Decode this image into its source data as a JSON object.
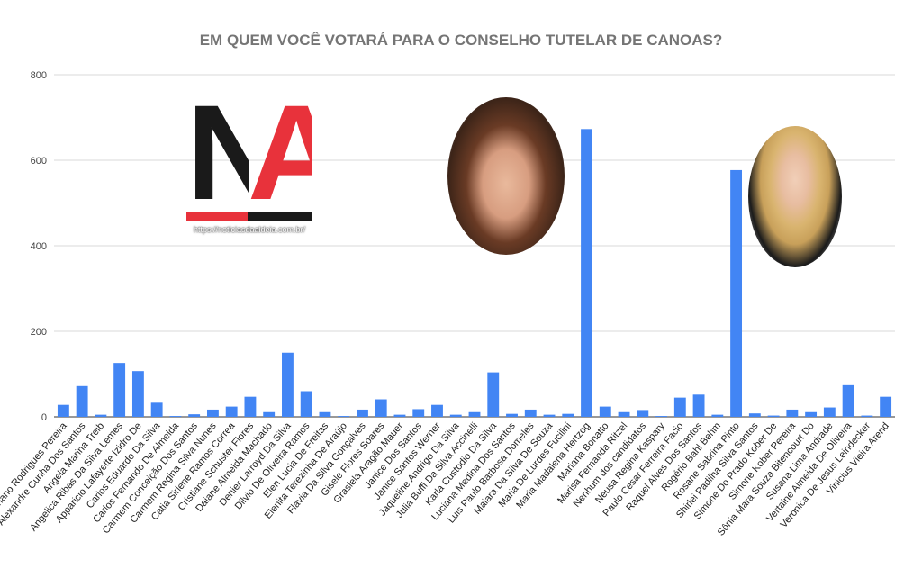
{
  "chart_data": {
    "type": "bar",
    "title": "EM QUEM VOCÊ VOTARÁ PARA O CONSELHO TUTELAR DE CANOAS?",
    "xlabel": "",
    "ylabel": "",
    "ylim": [
      0,
      800
    ],
    "yticks": [
      0,
      200,
      400,
      600,
      800
    ],
    "grid": true,
    "legend": "none",
    "bar_color": "#4285f4",
    "categories": [
      "Adriano Rodrigues Pereira",
      "Alexandre Cunha Dos Santos",
      "Angela Marina Treib",
      "Angelica Ribas Da Silva Lemes",
      "Apparicio Lafayette Izidro De",
      "Carlos Eduardo Da Silva",
      "Carlos Fernando De Almeida",
      "Carmem Conceição Dos Santos",
      "Carmem Regina Silva Nunes",
      "Catia Sirlene Ramos Correa",
      "Cristiane Schuster Flores",
      "Daiane Almeida Machado",
      "Denier Larroyd Da Silva",
      "Dilvio De Oliveira Ramos",
      "Elen Lucia De Freitas",
      "Elenita Terezinha De Araújo",
      "Flávia Da Silva Gonçalves",
      "Gisele Flores Soares",
      "Grasiela Aragão Mauer",
      "Janice Dos Santos",
      "Janice Santos Werner",
      "Jaqueline Andrigo Da Silva",
      "Julia Buffi Da Silva Accinelli",
      "Karla Custódio Da Silva",
      "Luciana Medina Dos Santos",
      "Luis Paulo Barbosa Domeles",
      "Maiara Da Silva De Souza",
      "Maria De Lurdes Fucilini",
      "Maria Madalena Hertzog",
      "Mariana Bonatto",
      "Marisa Fernanda Ritzel",
      "Nenhum dos candidatos",
      "Neusa Regina Kaspary",
      "Paulo Cesar Ferreira Facio",
      "Raquel Alves Dos Santos",
      "Rogério Bahl Behm",
      "Rosane Sabrina Pinto",
      "Shirlei Padilha Silva Santos",
      "Simone Do Prado Kober De",
      "Simone Kober Pereira",
      "Sônia Mara Souza Bitencourt Do",
      "Susana Lima Andrade",
      "Vertaine Almeida De Oliveira",
      "Veronica De Jesus Leindecker",
      "Vinicius Vieira Arend"
    ],
    "values": [
      28,
      72,
      5,
      126,
      107,
      33,
      2,
      6,
      17,
      24,
      47,
      11,
      150,
      60,
      11,
      2,
      17,
      41,
      5,
      18,
      28,
      5,
      11,
      104,
      7,
      17,
      5,
      7,
      673,
      24,
      11,
      16,
      2,
      45,
      52,
      5,
      577,
      8,
      3,
      17,
      11,
      22,
      74,
      3,
      47
    ]
  },
  "logo": {
    "letters_dark": "N",
    "letters_red": "A",
    "url": "https://noticiasdaaldeia.com.br/"
  },
  "photos": [
    {
      "label": "candidate-photo-left"
    },
    {
      "label": "candidate-photo-right"
    }
  ]
}
